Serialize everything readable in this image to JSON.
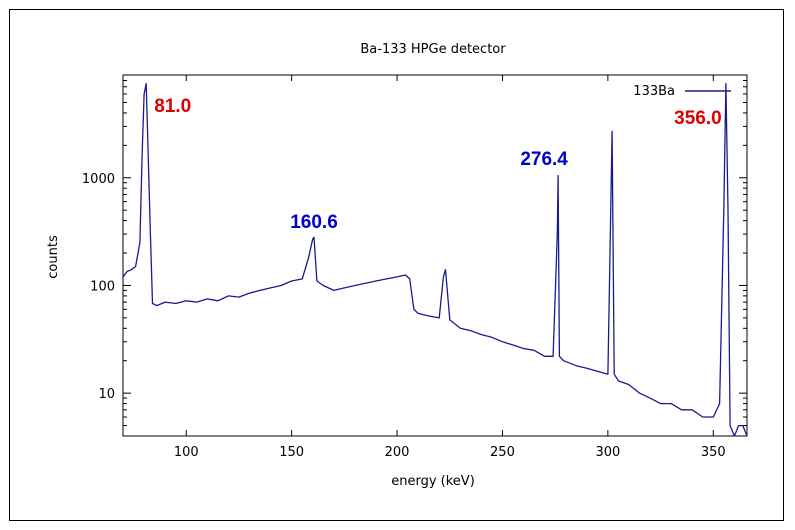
{
  "chart_data": {
    "type": "line",
    "title": "Ba-133 HPGe detector",
    "xlabel": "energy (keV)",
    "ylabel": "counts",
    "xlim": [
      70,
      366
    ],
    "ylim": [
      4,
      9000
    ],
    "y_scale": "log",
    "x_ticks": [
      100,
      150,
      200,
      250,
      300,
      350
    ],
    "x_tick_labels": [
      "100",
      "150",
      "200",
      "250",
      "300",
      "350"
    ],
    "y_ticks": [
      10,
      100,
      1000
    ],
    "y_tick_labels": [
      "10",
      "100",
      "1000"
    ],
    "grid": false,
    "legend_position": "top-right",
    "series": [
      {
        "name": "133Ba",
        "color": "#1a1a8c",
        "x": [
          70,
          72,
          74,
          76,
          78,
          79,
          80,
          81,
          82,
          83,
          84,
          86,
          90,
          95,
          100,
          105,
          110,
          115,
          120,
          125,
          130,
          135,
          140,
          145,
          150,
          155,
          158,
          160,
          160.6,
          162,
          165,
          170,
          175,
          180,
          185,
          190,
          195,
          200,
          204,
          206,
          208,
          210,
          215,
          220,
          222,
          223,
          225,
          230,
          235,
          240,
          245,
          250,
          255,
          260,
          265,
          270,
          274,
          276,
          276.4,
          277,
          279,
          285,
          290,
          295,
          300,
          302,
          303,
          305,
          310,
          315,
          320,
          325,
          330,
          335,
          340,
          345,
          350,
          353,
          355,
          356,
          357,
          358,
          360,
          362,
          364,
          366
        ],
        "y": [
          120,
          135,
          140,
          150,
          250,
          1500,
          6000,
          7500,
          1500,
          300,
          68,
          65,
          70,
          68,
          72,
          70,
          75,
          72,
          80,
          78,
          85,
          90,
          95,
          100,
          110,
          115,
          180,
          270,
          280,
          110,
          100,
          90,
          95,
          100,
          105,
          110,
          115,
          120,
          125,
          115,
          60,
          55,
          52,
          50,
          120,
          140,
          48,
          40,
          38,
          35,
          33,
          30,
          28,
          26,
          25,
          22,
          22,
          300,
          1050,
          22,
          20,
          18,
          17,
          16,
          15,
          2700,
          15,
          13,
          12,
          10,
          9,
          8,
          8,
          7,
          7,
          6,
          6,
          8,
          500,
          7500,
          500,
          5,
          4,
          5,
          5,
          4
        ]
      }
    ],
    "annotations": [
      {
        "text": "81.0",
        "x": 81.0,
        "color": "#dd0000"
      },
      {
        "text": "160.6",
        "x": 160.6,
        "color": "#0000cc"
      },
      {
        "text": "276.4",
        "x": 276.4,
        "color": "#0000cc"
      },
      {
        "text": "356.0",
        "x": 356.0,
        "color": "#dd0000"
      }
    ]
  }
}
